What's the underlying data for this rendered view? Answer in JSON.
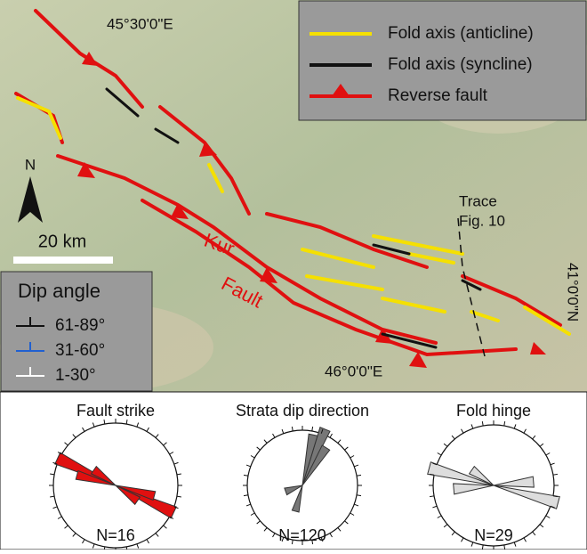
{
  "map": {
    "lon_labels": [
      "45°30'0\"E",
      "46°0'0\"E"
    ],
    "lat_label": "41°0'0\"N",
    "legend": [
      "Fold axis (anticline)",
      "Fold axis (syncline)",
      "Reverse fault"
    ],
    "trace_label": [
      "Trace",
      "Fig. 10"
    ],
    "fault_name": [
      "Kur",
      "Fault"
    ],
    "north": "N",
    "scale": "20 km",
    "dip_legend": {
      "title": "Dip angle",
      "items": [
        "61-89°",
        "31-60°",
        "1-30°"
      ]
    }
  },
  "roses": [
    {
      "title": "Fault strike",
      "count": "N=16"
    },
    {
      "title": "Strata dip direction",
      "count": "N=120"
    },
    {
      "title": "Fold hinge",
      "count": "N=29"
    }
  ]
}
